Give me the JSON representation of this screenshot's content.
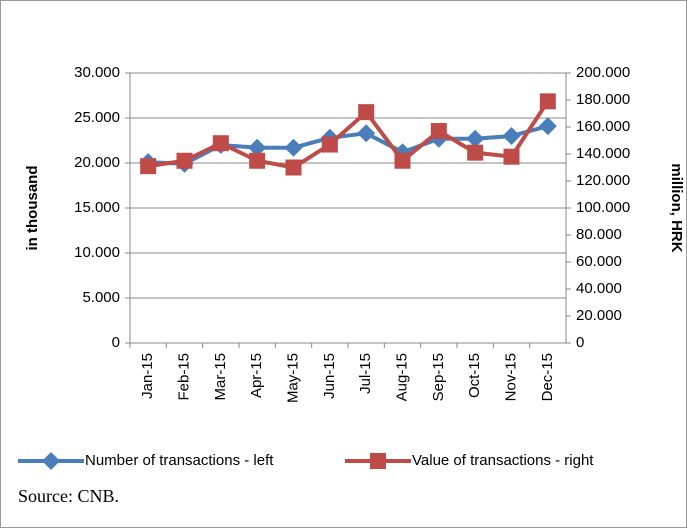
{
  "chart_data": {
    "type": "line",
    "y_label": "in thousand",
    "y2_label": "million, HRK",
    "categories": [
      "Jan-15",
      "Feb-15",
      "Mar-15",
      "Apr-15",
      "May-15",
      "Jun-15",
      "Jul-15",
      "Aug-15",
      "Sep-15",
      "Oct-15",
      "Nov-15",
      "Dec-15"
    ],
    "series": [
      {
        "name": "Number of transactions - left",
        "color": "#4a7ebb",
        "marker": "diamond",
        "values": [
          20100,
          19900,
          22000,
          21700,
          21700,
          22800,
          23300,
          21200,
          22700,
          22700,
          23000,
          24100
        ]
      },
      {
        "name": "Value of transactions - right",
        "color": "#be4b48",
        "marker": "square",
        "axis": "y2",
        "values": [
          131000,
          135000,
          148000,
          135000,
          130000,
          147000,
          171000,
          135000,
          157000,
          141000,
          138000,
          179000
        ]
      }
    ],
    "ylim": [
      0,
      30000
    ],
    "yticks": [
      0,
      {
        "value": 5000,
        "label": "5.000"
      },
      {
        "value": 10000,
        "label": "10.000"
      },
      {
        "value": 15000,
        "label": "15.000"
      },
      {
        "value": 20000,
        "label": "20.000"
      },
      {
        "value": 25000,
        "label": "25.000"
      },
      {
        "value": 30000,
        "label": "30.000"
      }
    ],
    "y2lim": [
      0,
      200000
    ],
    "y2ticks": [
      0,
      {
        "value": 20000,
        "label": "20.000"
      },
      {
        "value": 40000,
        "label": "40.000"
      },
      {
        "value": 60000,
        "label": "60.000"
      },
      {
        "value": 80000,
        "label": "80.000"
      },
      {
        "value": 100000,
        "label": "100.000"
      },
      {
        "value": 120000,
        "label": "120.000"
      },
      {
        "value": 140000,
        "label": "140.000"
      },
      {
        "value": 160000,
        "label": "160.000"
      },
      {
        "value": 180000,
        "label": "180.000"
      },
      {
        "value": 200000,
        "label": "200.000"
      }
    ],
    "grid": true,
    "source": "Source: CNB."
  }
}
